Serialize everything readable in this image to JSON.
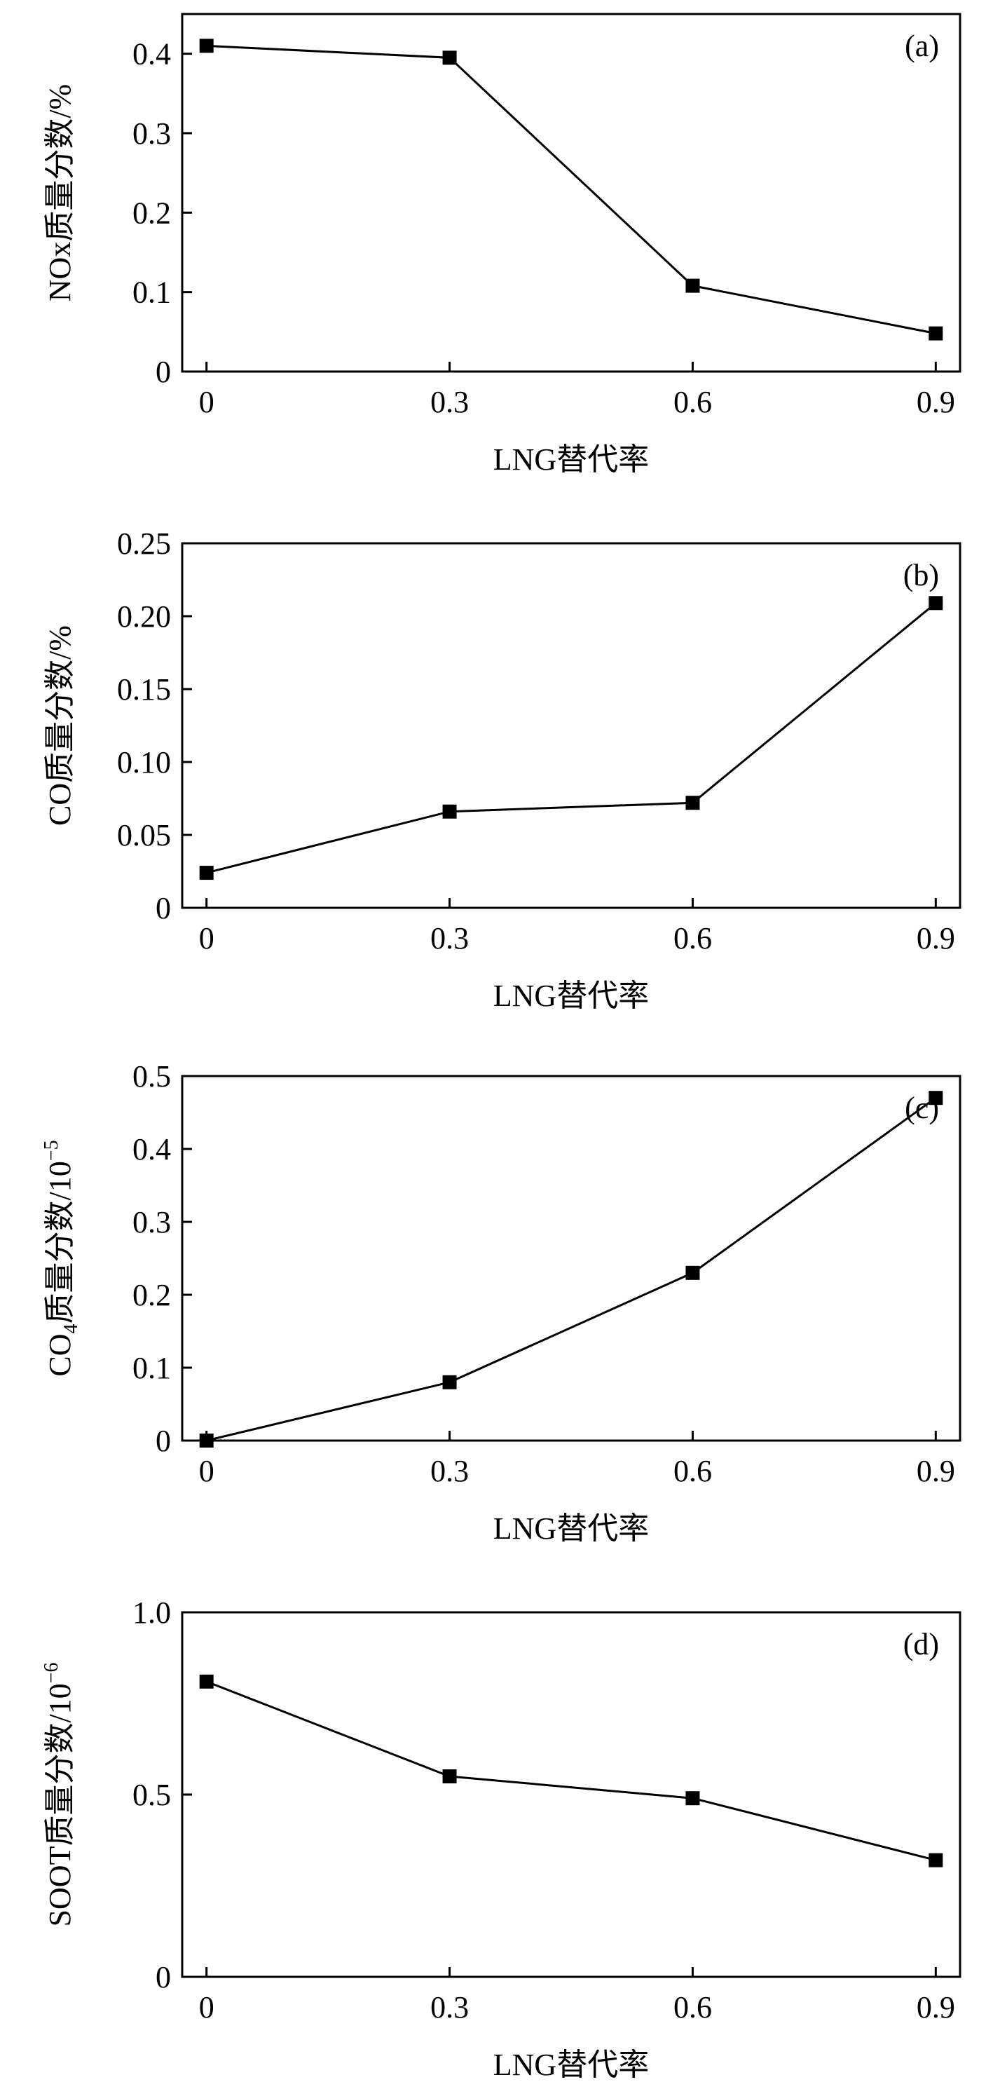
{
  "chart_data": [
    {
      "type": "line",
      "panel_label": "(a)",
      "xlabel": "LNG替代率",
      "ylabel": "NOx质量分数/%",
      "ylabel_sub": "",
      "ylabel_tail": "",
      "ylabel_sup": "",
      "x": [
        0,
        0.3,
        0.6,
        0.9
      ],
      "xticks": [
        "0",
        "0.3",
        "0.6",
        "0.9"
      ],
      "xlim": [
        -0.03,
        0.93
      ],
      "ylim": [
        0,
        0.45
      ],
      "yticks": [
        0,
        0.1,
        0.2,
        0.3,
        0.4
      ],
      "ytick_labels": [
        "0",
        "0.1",
        "0.2",
        "0.3",
        "0.4"
      ],
      "series": [
        {
          "values": [
            0.41,
            0.395,
            0.108,
            0.048
          ]
        }
      ]
    },
    {
      "type": "line",
      "panel_label": "(b)",
      "xlabel": "LNG替代率",
      "ylabel": "CO质量分数/%",
      "ylabel_sub": "",
      "ylabel_tail": "",
      "ylabel_sup": "",
      "x": [
        0,
        0.3,
        0.6,
        0.9
      ],
      "xticks": [
        "0",
        "0.3",
        "0.6",
        "0.9"
      ],
      "xlim": [
        -0.03,
        0.93
      ],
      "ylim": [
        0,
        0.25
      ],
      "yticks": [
        0,
        0.05,
        0.1,
        0.15,
        0.2,
        0.25
      ],
      "ytick_labels": [
        "0",
        "0.05",
        "0.10",
        "0.15",
        "0.20",
        "0.25"
      ],
      "series": [
        {
          "values": [
            0.024,
            0.066,
            0.072,
            0.209
          ]
        }
      ]
    },
    {
      "type": "line",
      "panel_label": "(c)",
      "xlabel": "LNG替代率",
      "ylabel": "CO",
      "ylabel_sub": "4",
      "ylabel_tail": "质量分数/10",
      "ylabel_sup": "−5",
      "x": [
        0,
        0.3,
        0.6,
        0.9
      ],
      "xticks": [
        "0",
        "0.3",
        "0.6",
        "0.9"
      ],
      "xlim": [
        -0.03,
        0.93
      ],
      "ylim": [
        0,
        0.5
      ],
      "yticks": [
        0,
        0.1,
        0.2,
        0.3,
        0.4,
        0.5
      ],
      "ytick_labels": [
        "0",
        "0.1",
        "0.2",
        "0.3",
        "0.4",
        "0.5"
      ],
      "series": [
        {
          "values": [
            0,
            0.08,
            0.23,
            0.47
          ]
        }
      ]
    },
    {
      "type": "line",
      "panel_label": "(d)",
      "xlabel": "LNG替代率",
      "ylabel": "SOOT质量分数/10",
      "ylabel_sub": "",
      "ylabel_tail": "",
      "ylabel_sup": "−6",
      "x": [
        0,
        0.3,
        0.6,
        0.9
      ],
      "xticks": [
        "0",
        "0.3",
        "0.6",
        "0.9"
      ],
      "xlim": [
        -0.03,
        0.93
      ],
      "ylim": [
        0,
        1.0
      ],
      "yticks": [
        0,
        0.5,
        1.0
      ],
      "ytick_labels": [
        "0",
        "0.5",
        "1.0"
      ],
      "series": [
        {
          "values": [
            0.81,
            0.55,
            0.49,
            0.32
          ]
        }
      ]
    }
  ]
}
